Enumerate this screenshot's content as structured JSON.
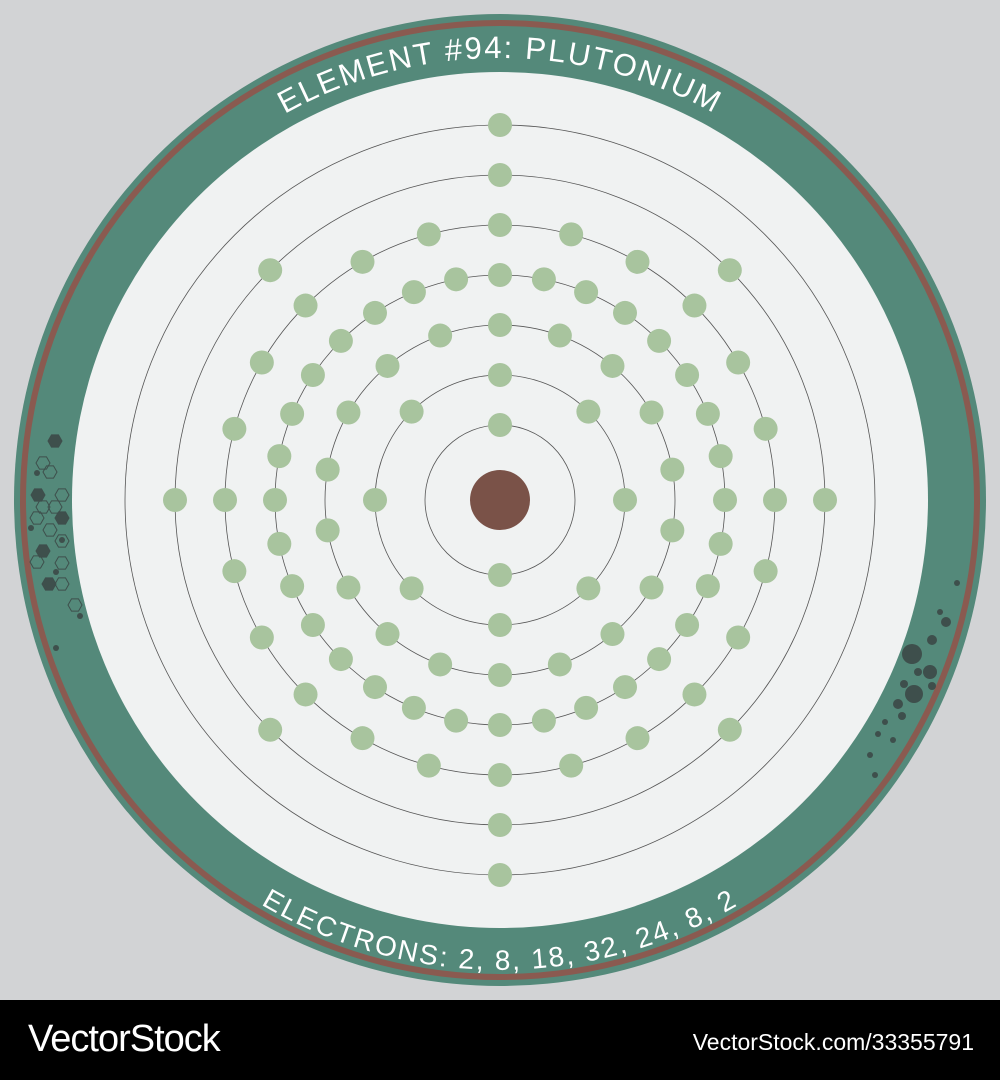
{
  "title": "ELEMENT #94: PLUTONIUM",
  "electrons_label": "ELECTRONS: 2, 8, 18, 32, 24, 8, 2",
  "shells": [
    2,
    8,
    18,
    32,
    24,
    8,
    2
  ],
  "colors": {
    "background": "#d2d3d5",
    "ring": "#54897a",
    "ring_stripe": "#8a5a50",
    "disc": "#f0f2f2",
    "electron": "#a8c49e",
    "nucleus": "#7a5248",
    "orbit": "#555555",
    "decoration": "#3e4f4c"
  },
  "watermark": {
    "brand": "VectorStock",
    "id": "VectorStock.com/33355791"
  }
}
